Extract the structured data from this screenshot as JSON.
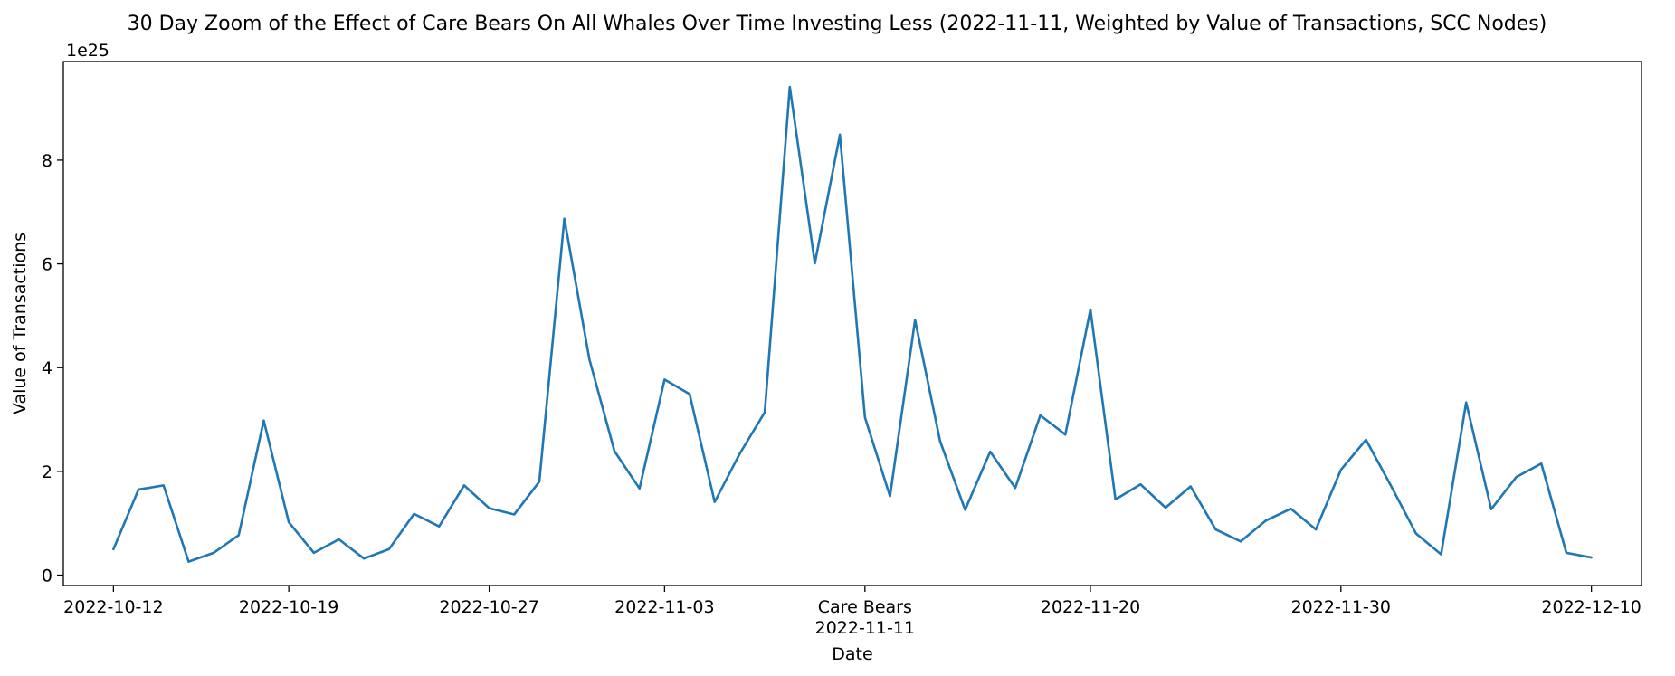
{
  "chart_data": {
    "type": "line",
    "title": "30 Day Zoom of the Effect of Care Bears On All Whales Over Time Investing Less (2022-11-11, Weighted by Value of Transactions, SCC Nodes)",
    "xlabel": "Date",
    "ylabel": "Value of Transactions",
    "y_offset_text": "1e25",
    "y_multiplier": 1e+25,
    "ylim": [
      -0.2,
      9.9
    ],
    "yticks": [
      0,
      2,
      4,
      6,
      8
    ],
    "xlim": [
      "2022-10-10",
      "2022-12-12"
    ],
    "xticks": [
      {
        "date": "2022-10-12",
        "label": "2022-10-12"
      },
      {
        "date": "2022-10-19",
        "label": "2022-10-19"
      },
      {
        "date": "2022-10-27",
        "label": "2022-10-27"
      },
      {
        "date": "2022-11-03",
        "label": "2022-11-03"
      },
      {
        "date": "2022-11-11",
        "label": "Care Bears\n2022-11-11"
      },
      {
        "date": "2022-11-20",
        "label": "2022-11-20"
      },
      {
        "date": "2022-11-30",
        "label": "2022-11-30"
      },
      {
        "date": "2022-12-10",
        "label": "2022-12-10"
      }
    ],
    "grid": false,
    "line_color": "#1f77b4",
    "series": [
      {
        "x": [
          "2022-10-12",
          "2022-10-13",
          "2022-10-14",
          "2022-10-15",
          "2022-10-16",
          "2022-10-17",
          "2022-10-18",
          "2022-10-19",
          "2022-10-20",
          "2022-10-21",
          "2022-10-22",
          "2022-10-23",
          "2022-10-24",
          "2022-10-25",
          "2022-10-26",
          "2022-10-27",
          "2022-10-28",
          "2022-10-29",
          "2022-10-30",
          "2022-10-31",
          "2022-11-01",
          "2022-11-02",
          "2022-11-03",
          "2022-11-04",
          "2022-11-05",
          "2022-11-06",
          "2022-11-07",
          "2022-11-08",
          "2022-11-09",
          "2022-11-10",
          "2022-11-11",
          "2022-11-12",
          "2022-11-13",
          "2022-11-14",
          "2022-11-15",
          "2022-11-16",
          "2022-11-17",
          "2022-11-18",
          "2022-11-19",
          "2022-11-20",
          "2022-11-21",
          "2022-11-22",
          "2022-11-23",
          "2022-11-24",
          "2022-11-25",
          "2022-11-26",
          "2022-11-27",
          "2022-11-28",
          "2022-11-29",
          "2022-11-30",
          "2022-12-01",
          "2022-12-02",
          "2022-12-03",
          "2022-12-04",
          "2022-12-05",
          "2022-12-06",
          "2022-12-07",
          "2022-12-08",
          "2022-12-09",
          "2022-12-10"
        ],
        "y": [
          0.5,
          1.65,
          1.73,
          0.26,
          0.43,
          0.77,
          2.98,
          1.02,
          0.43,
          0.69,
          0.32,
          0.5,
          1.18,
          0.94,
          1.73,
          1.29,
          1.17,
          1.8,
          6.87,
          4.16,
          2.39,
          1.67,
          3.77,
          3.49,
          1.41,
          2.34,
          3.14,
          9.41,
          6.01,
          8.49,
          3.04,
          1.52,
          4.92,
          2.58,
          1.26,
          2.38,
          1.68,
          3.08,
          2.71,
          5.12,
          1.46,
          1.75,
          1.3,
          1.71,
          0.88,
          0.65,
          1.05,
          1.28,
          0.88,
          2.03,
          2.61,
          1.72,
          0.8,
          0.4,
          3.33,
          1.27,
          1.89,
          2.15,
          0.43,
          0.34
        ]
      }
    ]
  }
}
